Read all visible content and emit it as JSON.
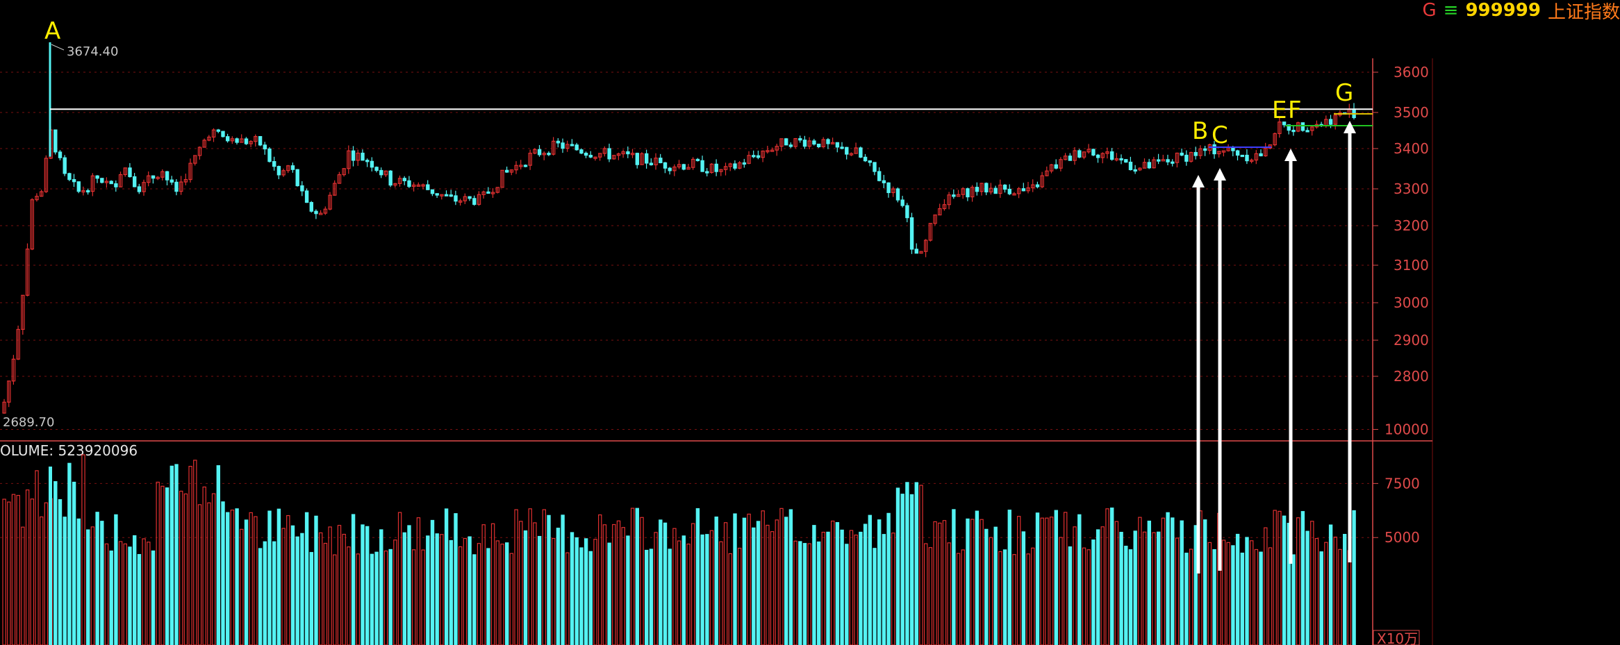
{
  "header": {
    "g": "G",
    "eq": "≡",
    "code": "999999",
    "name": "上证指数"
  },
  "volume_text": "OLUME: 523920096",
  "unit_label": "X10万",
  "colors": {
    "up": "#e03030",
    "down": "#54f2f2",
    "grid": "#7a1010",
    "axis": "#e04a4a",
    "marker": "#ffee00",
    "resistance": "#ffffff",
    "support_green": "#21c421",
    "support_blue": "#3d3dff",
    "arrow": "#ffffff"
  },
  "chart_data": {
    "type": "candlestick",
    "price_axis": {
      "ticks": [
        3600,
        3500,
        3400,
        3300,
        3200,
        3100,
        3000,
        2900,
        2800
      ]
    },
    "volume_axis": {
      "ticks": [
        10000,
        7500,
        5000
      ]
    },
    "high_label": "3674.40",
    "low_label": "2689.70",
    "annotations": [
      "A",
      "B",
      "C",
      "E",
      "F",
      "G"
    ],
    "resistance_level": 3510,
    "volume_total": 523920096
  }
}
